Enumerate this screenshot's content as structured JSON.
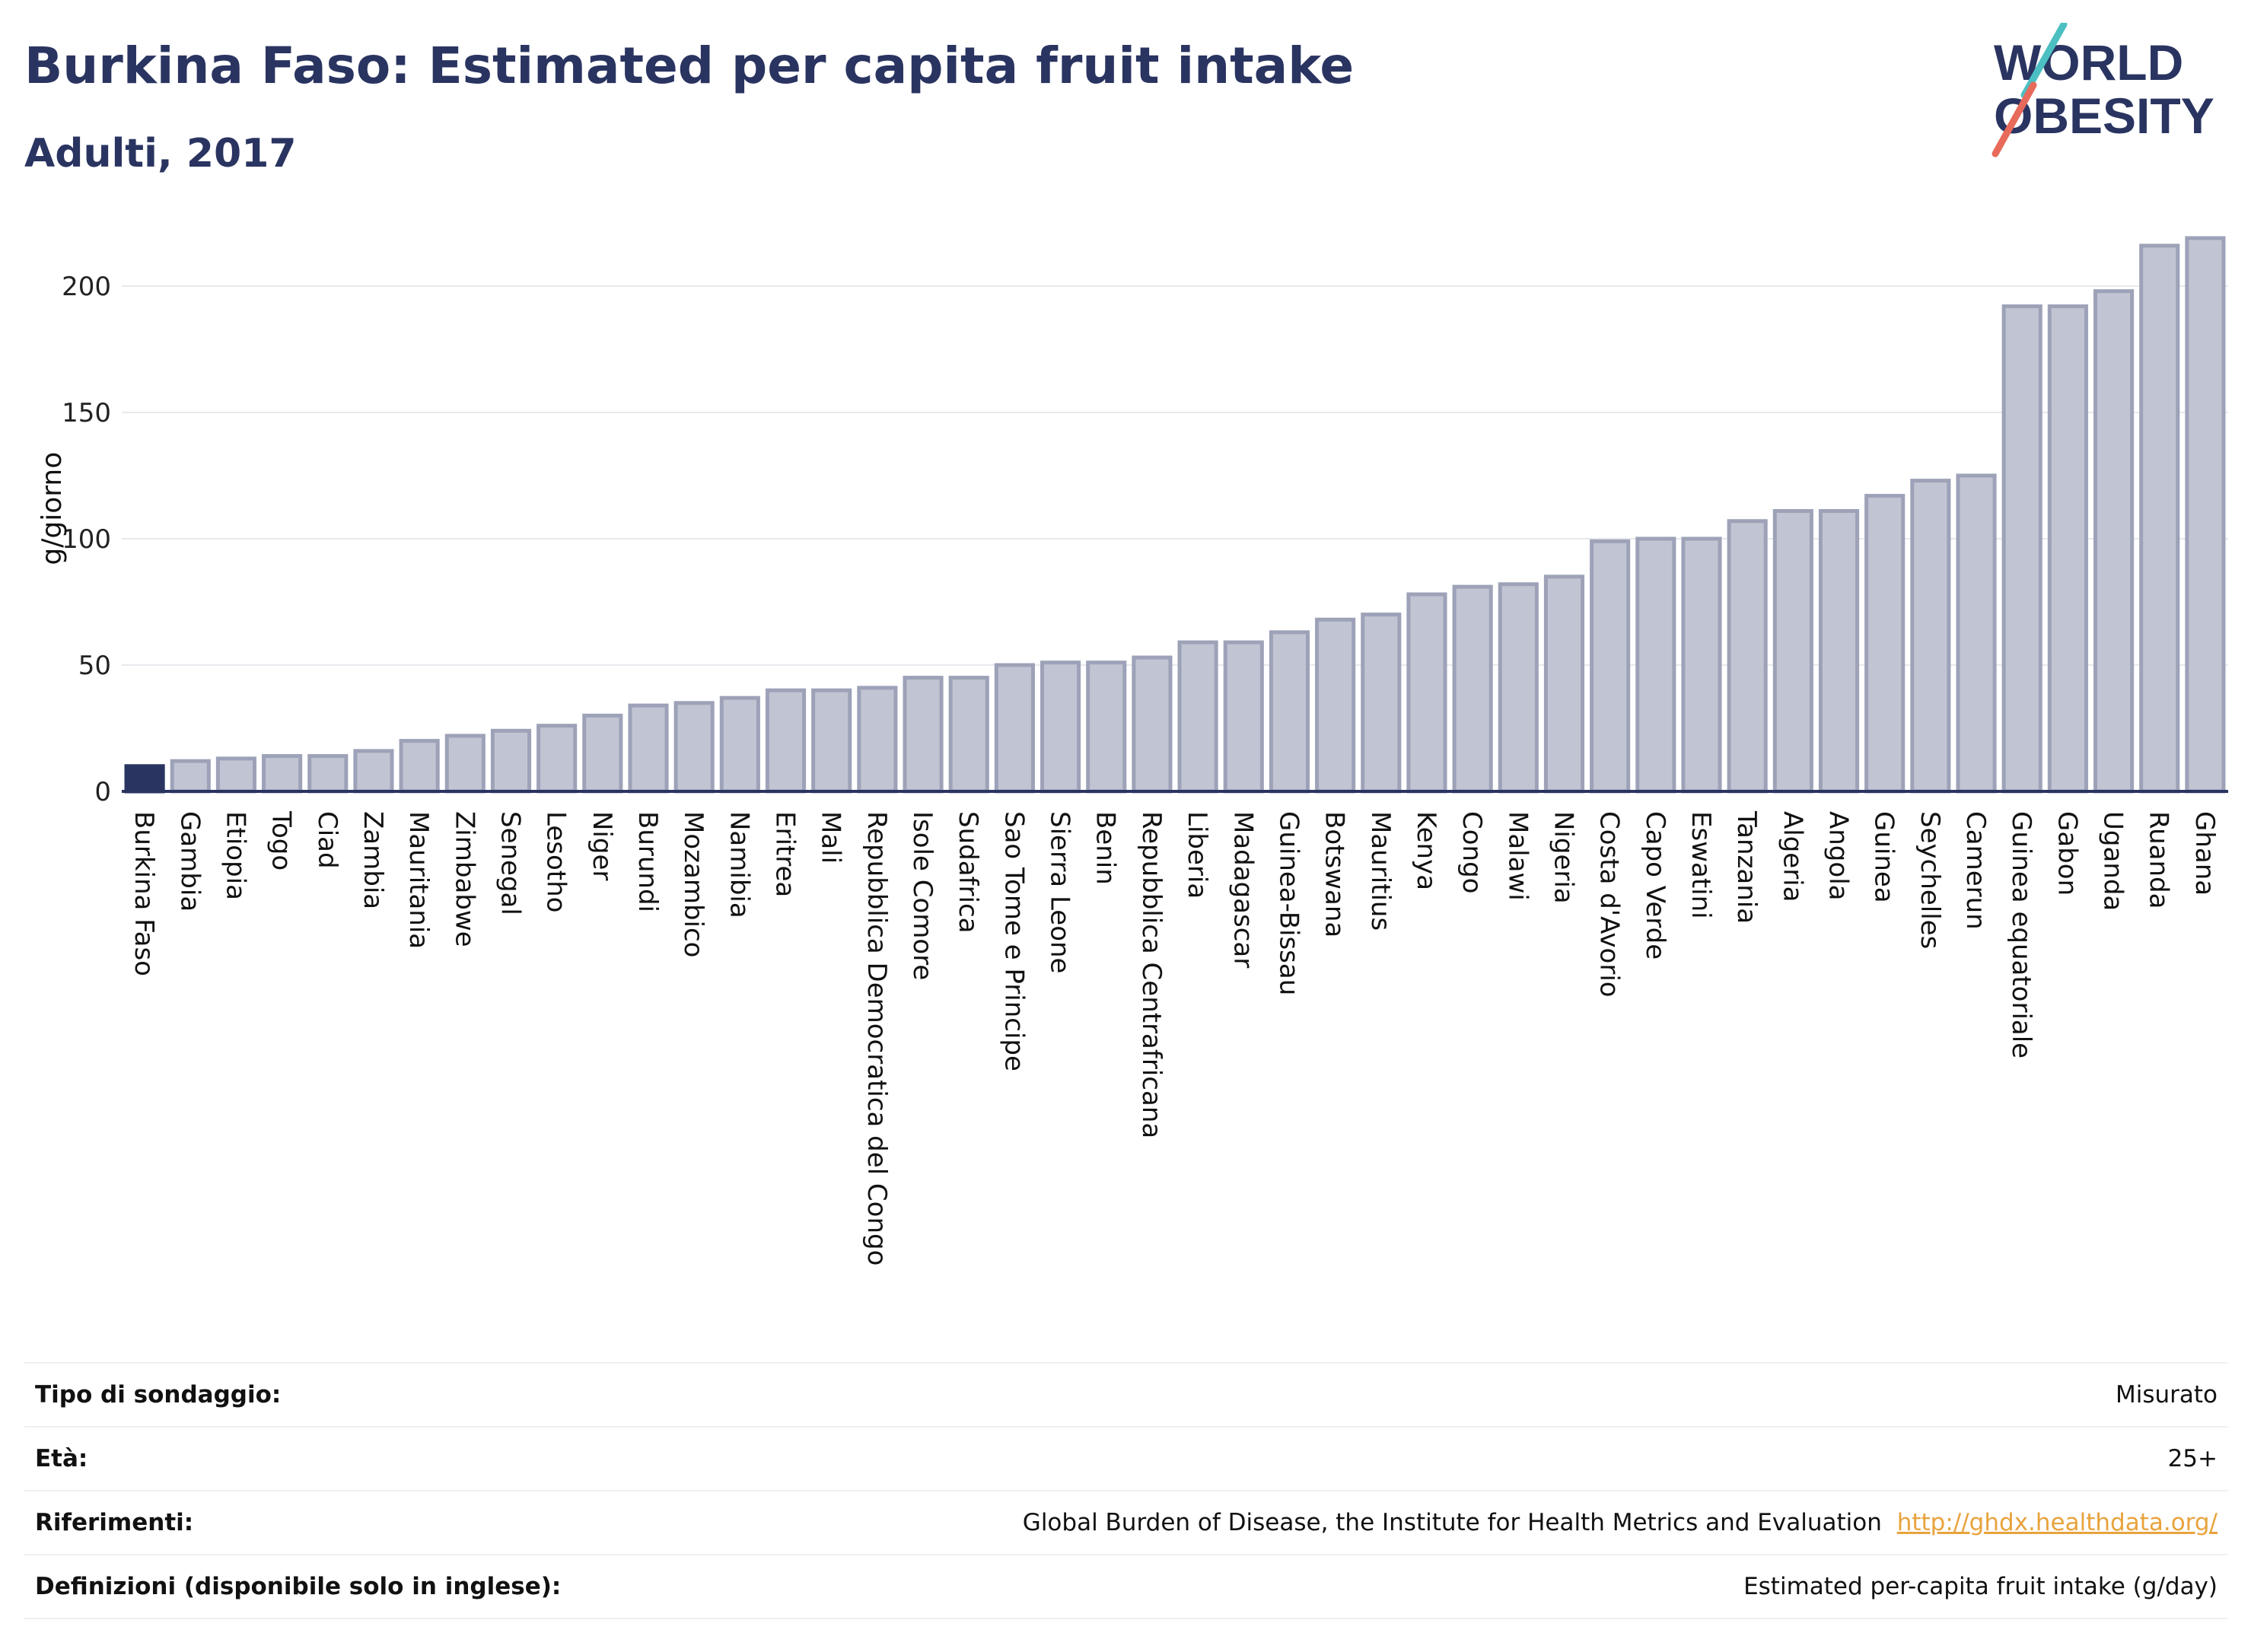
{
  "header": {
    "title": "Burkina Faso: Estimated per capita fruit intake",
    "subtitle": "Adulti, 2017"
  },
  "logo": {
    "line1": "WORLD",
    "line2": "OBESITY",
    "accent_teal": "#4bbfc1",
    "accent_coral": "#e86a5b",
    "text_color": "#2a3461"
  },
  "colors": {
    "highlight": "#2a3461",
    "bar": "#c1c4d2",
    "bar_border": "#9da2b8",
    "grid": "#e8e9ee",
    "axis": "#2a3461"
  },
  "chart_data": {
    "type": "bar",
    "title": "Burkina Faso: Estimated per capita fruit intake",
    "subtitle": "Adulti, 2017",
    "ylabel": "g/giorno",
    "xlabel": "",
    "ylim": [
      0,
      225
    ],
    "yticks": [
      0,
      50,
      100,
      150,
      200
    ],
    "grid": true,
    "highlight": "Burkina Faso",
    "categories": [
      "Burkina Faso",
      "Gambia",
      "Etiopia",
      "Togo",
      "Ciad",
      "Zambia",
      "Mauritania",
      "Zimbabwe",
      "Senegal",
      "Lesotho",
      "Niger",
      "Burundi",
      "Mozambico",
      "Namibia",
      "Eritrea",
      "Mali",
      "Repubblica Democratica del Congo",
      "Isole Comore",
      "Sudafrica",
      "Sao Tome e Principe",
      "Sierra Leone",
      "Benin",
      "Repubblica Centrafricana",
      "Liberia",
      "Madagascar",
      "Guinea-Bissau",
      "Botswana",
      "Mauritius",
      "Kenya",
      "Congo",
      "Malawi",
      "Nigeria",
      "Costa d'Avorio",
      "Capo Verde",
      "Eswatini",
      "Tanzania",
      "Algeria",
      "Angola",
      "Guinea",
      "Seychelles",
      "Camerun",
      "Guinea equatoriale",
      "Gabon",
      "Uganda",
      "Ruanda",
      "Ghana"
    ],
    "values": [
      10,
      12,
      13,
      14,
      14,
      16,
      20,
      22,
      24,
      26,
      30,
      34,
      35,
      37,
      40,
      40,
      41,
      45,
      45,
      50,
      51,
      51,
      53,
      59,
      59,
      63,
      68,
      70,
      78,
      81,
      82,
      85,
      99,
      100,
      100,
      107,
      111,
      111,
      117,
      123,
      125,
      192,
      192,
      198,
      216,
      219
    ]
  },
  "info": {
    "rows": [
      {
        "key": "Tipo di sondaggio:",
        "value": "Misurato"
      },
      {
        "key": "Età:",
        "value": "25+"
      },
      {
        "key": "Riferimenti:",
        "value": "Global Burden of Disease, the Institute for Health Metrics and Evaluation",
        "link": "http://ghdx.healthdata.org/"
      },
      {
        "key": "Definizioni (disponibile solo in inglese):",
        "value": "Estimated per-capita fruit intake (g/day)"
      }
    ]
  }
}
